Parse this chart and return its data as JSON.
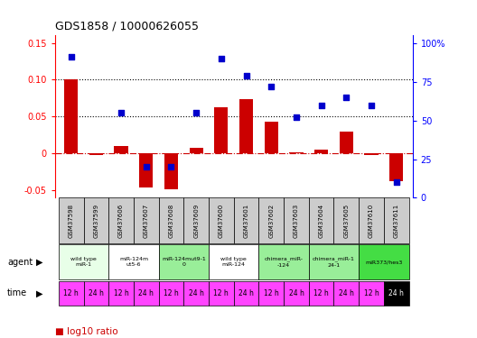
{
  "title": "GDS1858 / 10000626055",
  "samples": [
    "GSM37598",
    "GSM37599",
    "GSM37606",
    "GSM37607",
    "GSM37608",
    "GSM37609",
    "GSM37600",
    "GSM37601",
    "GSM37602",
    "GSM37603",
    "GSM37604",
    "GSM37605",
    "GSM37610",
    "GSM37611"
  ],
  "log10_ratio": [
    0.101,
    -0.002,
    0.01,
    -0.046,
    -0.048,
    0.008,
    0.063,
    0.074,
    0.043,
    0.001,
    0.005,
    0.03,
    -0.002,
    -0.037
  ],
  "percentile_rank": [
    91,
    null,
    55,
    20,
    20,
    55,
    90,
    79,
    72,
    52,
    60,
    65,
    60,
    10
  ],
  "ylim_left": [
    -0.06,
    0.16
  ],
  "ylim_right": [
    0,
    105
  ],
  "dotted_lines": [
    0.1,
    0.05
  ],
  "agents": [
    {
      "label": "wild type\nmiR-1",
      "cols": [
        0,
        1
      ],
      "color": "#e8ffe8"
    },
    {
      "label": "miR-124m\nut5-6",
      "cols": [
        2,
        3
      ],
      "color": "#ffffff"
    },
    {
      "label": "miR-124mut9-1\n0",
      "cols": [
        4,
        5
      ],
      "color": "#99ee99"
    },
    {
      "label": "wild type\nmiR-124",
      "cols": [
        6,
        7
      ],
      "color": "#ffffff"
    },
    {
      "label": "chimera_miR-\n-124",
      "cols": [
        8,
        9
      ],
      "color": "#99ee99"
    },
    {
      "label": "chimera_miR-1\n24-1",
      "cols": [
        10,
        11
      ],
      "color": "#99ee99"
    },
    {
      "label": "miR373/hes3",
      "cols": [
        12,
        13
      ],
      "color": "#44dd44"
    }
  ],
  "time_labels": [
    "12 h",
    "24 h",
    "12 h",
    "24 h",
    "12 h",
    "24 h",
    "12 h",
    "24 h",
    "12 h",
    "24 h",
    "12 h",
    "24 h",
    "12 h",
    "24 h"
  ],
  "time_last_black": true,
  "bar_color": "#cc0000",
  "scatter_color": "#0000cc",
  "bg_color": "#ffffff",
  "header_bg": "#cccccc",
  "magenta": "#ff44ff",
  "left_yticks": [
    -0.05,
    0,
    0.05,
    0.1,
    0.15
  ],
  "left_yticklabels": [
    "-0.05",
    "0",
    "0.05",
    "0.10",
    "0.15"
  ],
  "right_yticks": [
    0,
    25,
    50,
    75,
    100
  ],
  "right_yticklabels": [
    "0",
    "25",
    "50",
    "75",
    "100%"
  ]
}
